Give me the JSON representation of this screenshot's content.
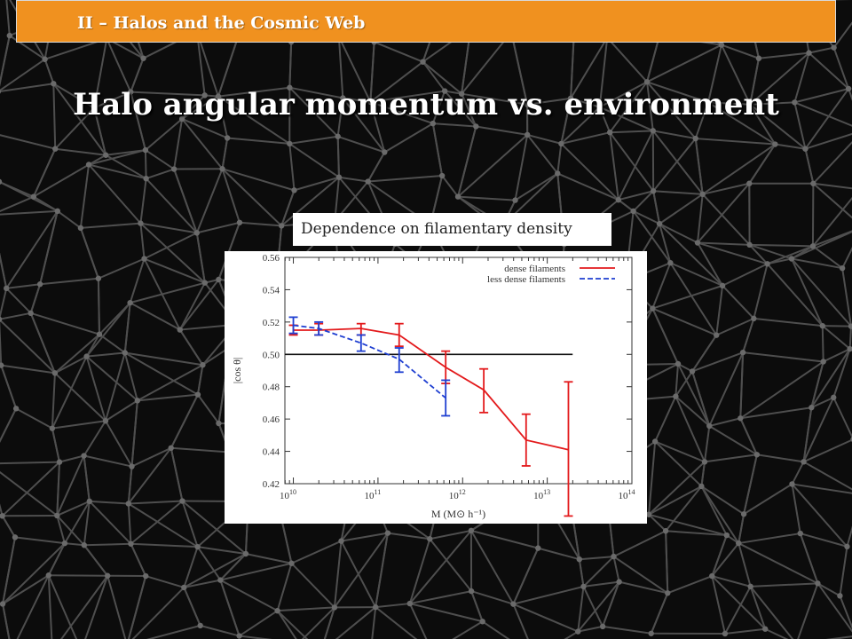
{
  "header": {
    "section": "II – Halos and the Cosmic Web"
  },
  "title": "Halo angular momentum vs. environment",
  "caption": "Dependence on filamentary density",
  "colors": {
    "header_bar": "#f0911f",
    "background": "#0c0c0c",
    "mesh": "#5a5a5a",
    "dense": "#e31a1c",
    "less_dense": "#1f3fd1"
  },
  "chart_data": {
    "type": "line",
    "title": "",
    "xlabel": "M (M⊙ h⁻¹)",
    "ylabel": "|cos θ|",
    "xscale": "log",
    "xlim_log10": [
      9.9,
      14
    ],
    "ylim": [
      0.42,
      0.56
    ],
    "xticks": [
      {
        "base": "10",
        "exp": "10",
        "log10": 10
      },
      {
        "base": "10",
        "exp": "11",
        "log10": 11
      },
      {
        "base": "10",
        "exp": "12",
        "log10": 12
      },
      {
        "base": "10",
        "exp": "13",
        "log10": 13
      },
      {
        "base": "10",
        "exp": "14",
        "log10": 14
      }
    ],
    "yticks": [
      "0.42",
      "0.44",
      "0.46",
      "0.48",
      "0.50",
      "0.52",
      "0.54",
      "0.56"
    ],
    "reference_line": {
      "y": 0.5,
      "x_from_log10": 9.9,
      "x_to_log10": 13.3
    },
    "legend_position": "top-right",
    "series": [
      {
        "name": "dense filaments",
        "style": "solid",
        "color": "#e31a1c",
        "x_log10": [
          10.0,
          10.3,
          10.8,
          11.25,
          11.8,
          12.25,
          12.75,
          13.25
        ],
        "y": [
          0.515,
          0.515,
          0.516,
          0.512,
          0.492,
          0.478,
          0.447,
          0.441
        ],
        "err_low": [
          0.512,
          0.512,
          0.512,
          0.505,
          0.482,
          0.464,
          0.431,
          0.4
        ],
        "err_high": [
          0.518,
          0.519,
          0.519,
          0.519,
          0.502,
          0.491,
          0.463,
          0.483
        ]
      },
      {
        "name": "less dense filaments",
        "style": "dashed",
        "color": "#1f3fd1",
        "x_log10": [
          10.0,
          10.3,
          10.8,
          11.25,
          11.8
        ],
        "y": [
          0.518,
          0.516,
          0.507,
          0.497,
          0.473
        ],
        "err_low": [
          0.513,
          0.512,
          0.502,
          0.489,
          0.462
        ],
        "err_high": [
          0.523,
          0.52,
          0.512,
          0.504,
          0.484
        ]
      }
    ]
  }
}
